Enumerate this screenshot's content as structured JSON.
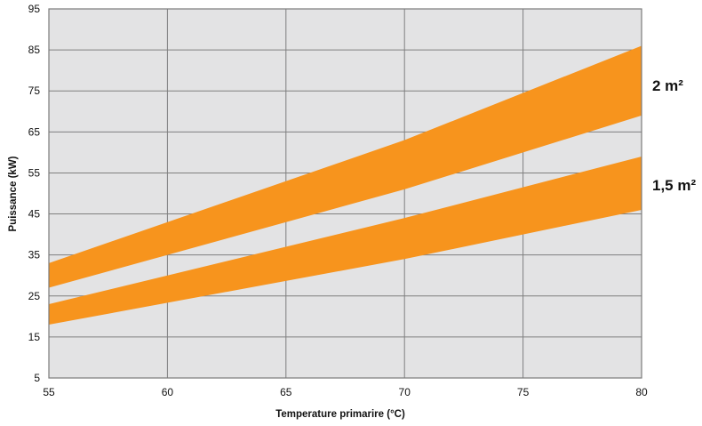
{
  "chart_data": {
    "type": "area",
    "xlabel": "Temperature primarire (°C)",
    "ylabel": "Puissance (kW)",
    "xlim": [
      55,
      80
    ],
    "ylim": [
      5,
      95
    ],
    "x_ticks": [
      55,
      60,
      65,
      70,
      75,
      80
    ],
    "y_ticks": [
      5,
      15,
      25,
      35,
      45,
      55,
      65,
      75,
      85,
      95
    ],
    "grid": true,
    "plot_background": "#e3e3e4",
    "band_color": "#f7941d",
    "series": [
      {
        "name": "2 m²",
        "x": [
          55,
          70,
          80
        ],
        "upper": [
          33,
          63,
          86
        ],
        "lower": [
          27,
          51,
          69
        ]
      },
      {
        "name": "1,5 m²",
        "x": [
          55,
          70,
          80
        ],
        "upper": [
          23,
          44,
          59
        ],
        "lower": [
          18,
          34,
          46
        ]
      }
    ]
  }
}
